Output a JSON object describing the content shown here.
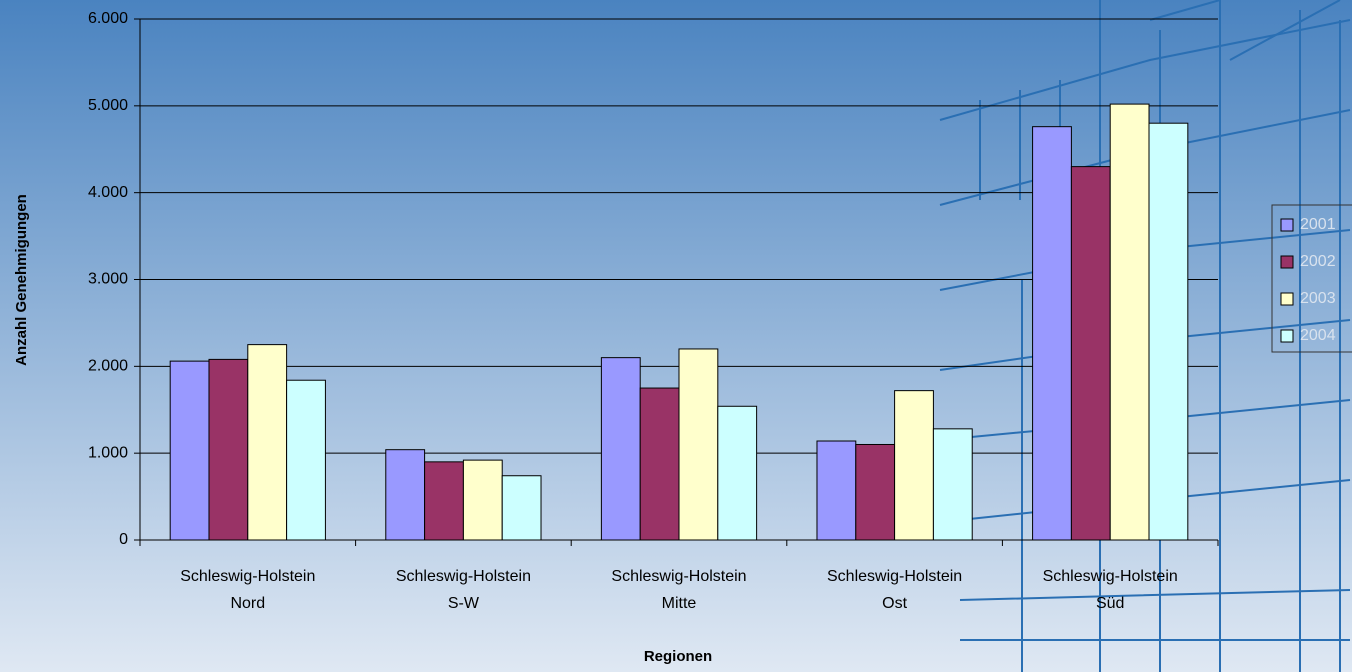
{
  "chart_data": {
    "type": "bar",
    "x_label": "Regionen",
    "y_label": "Anzahl Genehmigungen",
    "categories": [
      "Schleswig-Holstein\nNord",
      "Schleswig-Holstein\nS-W",
      "Schleswig-Holstein\nMitte",
      "Schleswig-Holstein\nOst",
      "Schleswig-Holstein\nSüd"
    ],
    "series": [
      {
        "name": "2001",
        "color": "#9999ff",
        "values": [
          2060,
          1040,
          2100,
          1140,
          4760
        ]
      },
      {
        "name": "2002",
        "color": "#993366",
        "values": [
          2080,
          900,
          1750,
          1100,
          4300
        ]
      },
      {
        "name": "2003",
        "color": "#ffffcc",
        "values": [
          2250,
          920,
          2200,
          1720,
          5020
        ]
      },
      {
        "name": "2004",
        "color": "#ccffff",
        "values": [
          1840,
          740,
          1540,
          1280,
          4800
        ]
      }
    ],
    "ylim": [
      0,
      6000
    ],
    "yticks": [
      0,
      {
        "value": 1000,
        "label": "1.000"
      },
      {
        "value": 2000,
        "label": "2.000"
      },
      {
        "value": 3000,
        "label": "3.000"
      },
      {
        "value": 4000,
        "label": "4.000"
      },
      {
        "value": 5000,
        "label": "5.000"
      },
      {
        "value": 6000,
        "label": "6.000"
      }
    ],
    "grid": true
  }
}
